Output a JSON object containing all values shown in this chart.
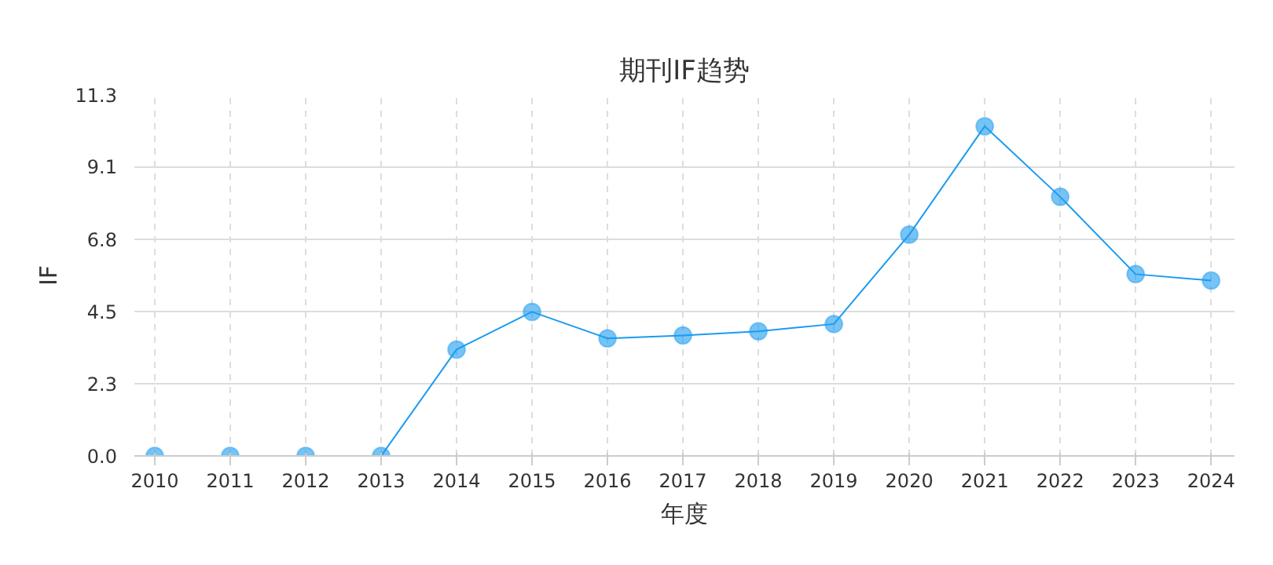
{
  "chart_data": {
    "type": "line",
    "title": "期刊IF趋势",
    "xlabel": "年度",
    "ylabel": "IF",
    "categories": [
      "2010",
      "2011",
      "2012",
      "2013",
      "2014",
      "2015",
      "2016",
      "2017",
      "2018",
      "2019",
      "2020",
      "2021",
      "2022",
      "2023",
      "2024"
    ],
    "series": [
      {
        "color": "#1a9bf0",
        "values": [
          0,
          0,
          0,
          0,
          3.33,
          4.51,
          3.68,
          3.77,
          3.9,
          4.13,
          6.93,
          10.32,
          8.11,
          5.69,
          5.49
        ]
      }
    ],
    "ylim": [
      0,
      11.3
    ],
    "yticks": [
      {
        "value": 0,
        "label": "0.0"
      },
      {
        "value": 2.26,
        "label": "2.3"
      },
      {
        "value": 4.52,
        "label": "4.5"
      },
      {
        "value": 6.78,
        "label": "6.8"
      },
      {
        "value": 9.06,
        "label": "9.1"
      },
      {
        "value": 11.3,
        "label": "11.3"
      }
    ],
    "grid": true,
    "marker": "circle",
    "line_style": "solid"
  }
}
